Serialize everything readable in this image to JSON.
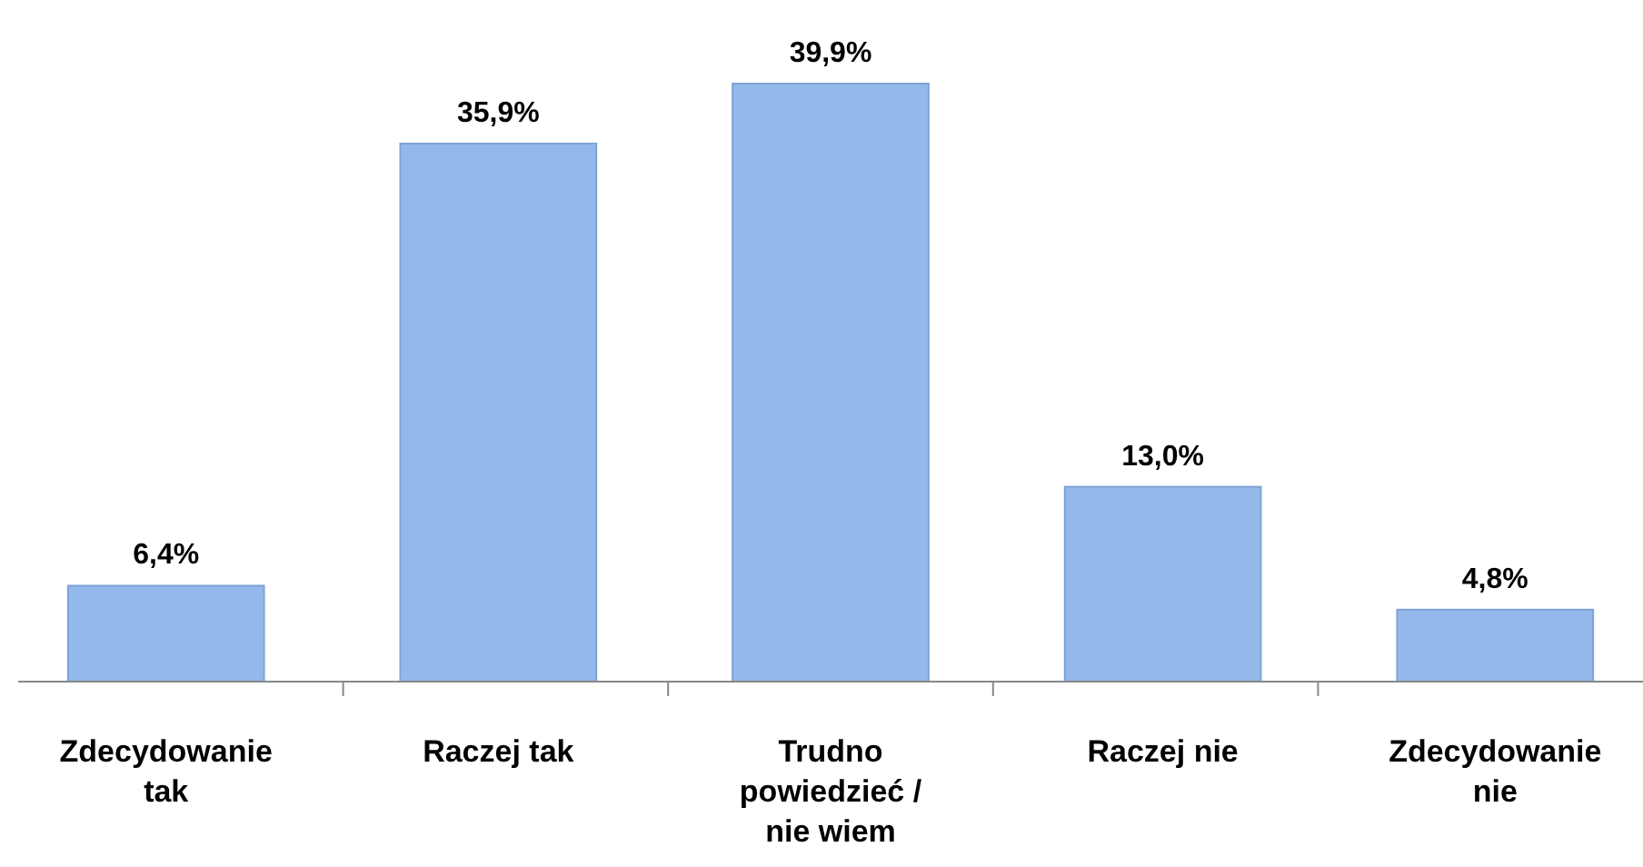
{
  "chart_data": {
    "type": "bar",
    "categories": [
      "Zdecydowanie tak",
      "Raczej tak",
      "Trudno powiedzieć / nie wiem",
      "Raczej nie",
      "Zdecydowanie nie"
    ],
    "values": [
      6.4,
      35.9,
      39.9,
      13.0,
      4.8
    ],
    "value_labels": [
      "6,4%",
      "35,9%",
      "39,9%",
      "13,0%",
      "4,8%"
    ],
    "color": "#95b8ea"
  }
}
